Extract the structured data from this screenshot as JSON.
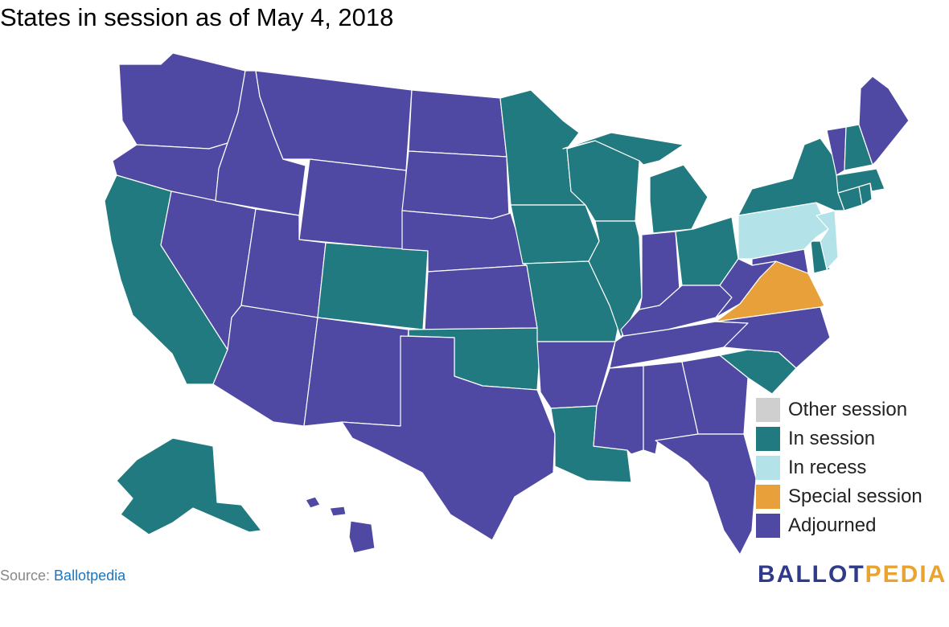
{
  "title": "States in session as of May 4, 2018",
  "colors": {
    "other": "#cfcfcf",
    "in_session": "#207a7f",
    "recess": "#b3e3e8",
    "special": "#e8a03a",
    "adjourned": "#4f49a3"
  },
  "legend": [
    {
      "label": "Other session",
      "status": "other"
    },
    {
      "label": "In session",
      "status": "in_session"
    },
    {
      "label": "In recess",
      "status": "recess"
    },
    {
      "label": "Special session",
      "status": "special"
    },
    {
      "label": "Adjourned",
      "status": "adjourned"
    }
  ],
  "states": {
    "WA": "adjourned",
    "OR": "adjourned",
    "CA": "in_session",
    "NV": "adjourned",
    "ID": "adjourned",
    "MT": "adjourned",
    "WY": "adjourned",
    "UT": "adjourned",
    "AZ": "adjourned",
    "CO": "in_session",
    "NM": "adjourned",
    "ND": "adjourned",
    "SD": "adjourned",
    "NE": "adjourned",
    "KS": "adjourned",
    "OK": "in_session",
    "TX": "adjourned",
    "MN": "in_session",
    "IA": "in_session",
    "MO": "in_session",
    "AR": "adjourned",
    "LA": "in_session",
    "WI": "in_session",
    "IL": "in_session",
    "MI": "in_session",
    "IN": "adjourned",
    "OH": "in_session",
    "KY": "adjourned",
    "TN": "adjourned",
    "MS": "adjourned",
    "AL": "adjourned",
    "GA": "adjourned",
    "FL": "adjourned",
    "SC": "in_session",
    "NC": "adjourned",
    "VA": "special",
    "WV": "adjourned",
    "MD": "adjourned",
    "DE": "in_session",
    "PA": "recess",
    "NJ": "recess",
    "NY": "in_session",
    "CT": "in_session",
    "RI": "in_session",
    "MA": "in_session",
    "VT": "adjourned",
    "NH": "in_session",
    "ME": "adjourned",
    "AK": "in_session",
    "HI": "adjourned"
  },
  "source": {
    "prefix": "Source: ",
    "link": "Ballotpedia"
  },
  "logo": {
    "part1": "BALLOT",
    "part2": "PEDIA"
  }
}
